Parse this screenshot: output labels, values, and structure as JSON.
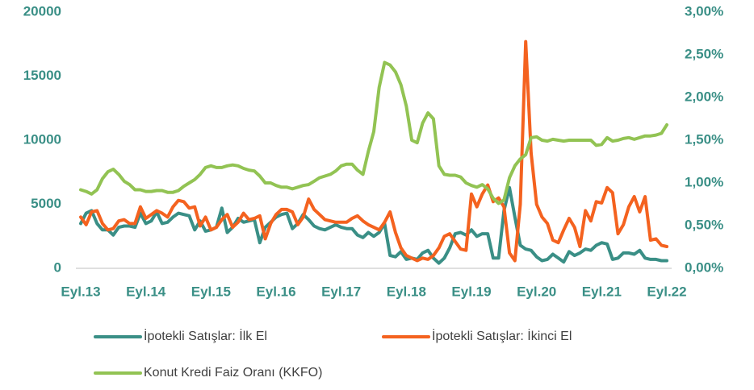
{
  "chart_data": {
    "type": "line",
    "categories": [
      "Eyl.13",
      null,
      null,
      null,
      null,
      null,
      null,
      null,
      null,
      null,
      null,
      null,
      "Eyl.14",
      null,
      null,
      null,
      null,
      null,
      null,
      null,
      null,
      null,
      null,
      null,
      "Eyl.15",
      null,
      null,
      null,
      null,
      null,
      null,
      null,
      null,
      null,
      null,
      null,
      "Eyl.16",
      null,
      null,
      null,
      null,
      null,
      null,
      null,
      null,
      null,
      null,
      null,
      "Eyl.17",
      null,
      null,
      null,
      null,
      null,
      null,
      null,
      null,
      null,
      null,
      null,
      "Eyl.18",
      null,
      null,
      null,
      null,
      null,
      null,
      null,
      null,
      null,
      null,
      null,
      "Eyl.19",
      null,
      null,
      null,
      null,
      null,
      null,
      null,
      null,
      null,
      null,
      null,
      "Eyl.20",
      null,
      null,
      null,
      null,
      null,
      null,
      null,
      null,
      null,
      null,
      null,
      "Eyl.21",
      null,
      null,
      null,
      null,
      null,
      null,
      null,
      null,
      null,
      null,
      null,
      "Eyl.22"
    ],
    "series": [
      {
        "name": "İpotekli Satışlar: İlk El",
        "color": "#3a8f86",
        "values": [
          3500,
          4300,
          4500,
          3500,
          3000,
          3000,
          2600,
          3200,
          3300,
          3300,
          3200,
          4300,
          3500,
          3700,
          4400,
          3500,
          3600,
          4000,
          4300,
          4200,
          4100,
          3000,
          3700,
          2900,
          3000,
          3200,
          4700,
          2800,
          3200,
          3900,
          3600,
          3700,
          3800,
          2000,
          3200,
          3600,
          4000,
          4200,
          4300,
          3100,
          3500,
          4200,
          3800,
          3300,
          3100,
          3000,
          3200,
          3400,
          3200,
          3100,
          3100,
          2600,
          2400,
          2800,
          2500,
          2800,
          3500,
          1000,
          900,
          1300,
          700,
          800,
          700,
          1200,
          1400,
          800,
          400,
          800,
          1600,
          2700,
          2800,
          2600,
          3000,
          2500,
          2700,
          2700,
          800,
          800,
          4500,
          6300,
          4000,
          1800,
          1500,
          1400,
          900,
          600,
          700,
          1100,
          800,
          500,
          1300,
          1000,
          1200,
          1500,
          1400,
          1800,
          2000,
          1900,
          700,
          800,
          1200,
          1200,
          1100,
          1400,
          800,
          700,
          700,
          600,
          600
        ]
      },
      {
        "name": "İpotekli Satışlar: İkinci El",
        "color": "#f4621f",
        "values": [
          4000,
          3400,
          4400,
          4500,
          3500,
          3000,
          3100,
          3700,
          3800,
          3500,
          3500,
          4800,
          3900,
          4200,
          4500,
          4300,
          4000,
          4800,
          5300,
          5200,
          4700,
          4800,
          3300,
          4000,
          3000,
          3200,
          3800,
          4200,
          3200,
          3600,
          4300,
          3800,
          3900,
          4100,
          2300,
          3500,
          4200,
          4600,
          4600,
          4400,
          3400,
          4000,
          5400,
          4600,
          4200,
          3800,
          3700,
          3600,
          3600,
          3600,
          3900,
          4100,
          3700,
          3400,
          3200,
          3000,
          3600,
          4400,
          2800,
          1600,
          1000,
          800,
          600,
          800,
          700,
          1000,
          1600,
          2500,
          2700,
          2100,
          1500,
          1400,
          5800,
          4800,
          5800,
          6500,
          5200,
          5500,
          4800,
          1200,
          600,
          5000,
          17700,
          9000,
          5000,
          4000,
          3500,
          2200,
          2000,
          3000,
          3900,
          3200,
          1700,
          4500,
          3700,
          5200,
          5100,
          6300,
          5900,
          2700,
          3400,
          4800,
          5600,
          4400,
          5600,
          2200,
          2300,
          1800,
          1700
        ]
      },
      {
        "name": "Konut Kredi Faiz Oranı (KKFO)",
        "color": "#92c353",
        "axis": "y2",
        "values": [
          0.92,
          0.9,
          0.87,
          0.92,
          1.05,
          1.13,
          1.16,
          1.1,
          1.02,
          0.98,
          0.92,
          0.92,
          0.9,
          0.9,
          0.91,
          0.91,
          0.89,
          0.89,
          0.91,
          0.96,
          1.0,
          1.04,
          1.1,
          1.18,
          1.2,
          1.18,
          1.18,
          1.2,
          1.21,
          1.2,
          1.17,
          1.15,
          1.14,
          1.08,
          1.0,
          1.0,
          0.97,
          0.95,
          0.95,
          0.93,
          0.95,
          0.97,
          0.98,
          1.02,
          1.06,
          1.08,
          1.1,
          1.14,
          1.2,
          1.22,
          1.22,
          1.15,
          1.1,
          1.37,
          1.6,
          2.12,
          2.41,
          2.38,
          2.3,
          2.15,
          1.9,
          1.5,
          1.47,
          1.7,
          1.82,
          1.75,
          1.2,
          1.1,
          1.09,
          1.09,
          1.07,
          1.0,
          0.97,
          0.95,
          0.98,
          0.93,
          0.82,
          0.76,
          0.8,
          1.06,
          1.2,
          1.28,
          1.33,
          1.53,
          1.54,
          1.5,
          1.49,
          1.51,
          1.5,
          1.49,
          1.5,
          1.5,
          1.5,
          1.5,
          1.5,
          1.44,
          1.45,
          1.53,
          1.49,
          1.5,
          1.52,
          1.53,
          1.51,
          1.53,
          1.55,
          1.55,
          1.56,
          1.58,
          1.68
        ]
      }
    ],
    "ylim": [
      0,
      20000
    ],
    "yticks": [
      0,
      5000,
      10000,
      15000,
      20000
    ],
    "y2lim": [
      0,
      3
    ],
    "y2ticks": [
      {
        "value": 0,
        "label": "0,00%"
      },
      {
        "value": 0.5,
        "label": "0,50%"
      },
      {
        "value": 1,
        "label": "1,00%"
      },
      {
        "value": 1.5,
        "label": "1,50%"
      },
      {
        "value": 2,
        "label": "2,00%"
      },
      {
        "value": 2.5,
        "label": "2,50%"
      },
      {
        "value": 3,
        "label": "3,00%"
      }
    ],
    "grid": false,
    "legend": "bottom"
  }
}
